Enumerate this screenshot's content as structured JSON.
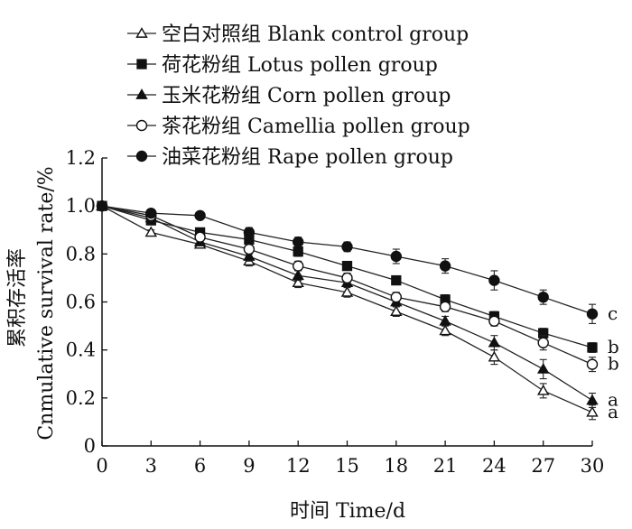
{
  "chart_data": {
    "type": "line",
    "xlabel": "时间  Time/d",
    "ylabel_cn": "累积存活率",
    "ylabel_en": "Cnmulative survival rate/%",
    "xlim": [
      0,
      30
    ],
    "ylim": [
      0,
      1.2
    ],
    "x_ticks": [
      0,
      3,
      6,
      9,
      12,
      15,
      18,
      21,
      24,
      27,
      30
    ],
    "y_ticks": [
      0,
      0.2,
      0.4,
      0.6,
      0.8,
      1.0,
      1.2
    ],
    "y_tick_labels": [
      "0",
      "0.2",
      "0.4",
      "0.6",
      "0.8",
      "1.0",
      "1.2"
    ],
    "grid": false,
    "legend_position": "top-left",
    "x": [
      0,
      3,
      6,
      9,
      12,
      15,
      18,
      21,
      24,
      27,
      30
    ],
    "series": [
      {
        "name": "空白对照组 Blank control group",
        "marker": "triangle-open",
        "values": [
          1.0,
          0.89,
          0.84,
          0.77,
          0.68,
          0.64,
          0.56,
          0.48,
          0.37,
          0.23,
          0.14
        ],
        "errors": [
          0.0,
          0.01,
          0.01,
          0.02,
          0.02,
          0.02,
          0.02,
          0.02,
          0.03,
          0.03,
          0.03
        ]
      },
      {
        "name": "荷花粉组 Lotus pollen group",
        "marker": "square-filled",
        "values": [
          1.0,
          0.94,
          0.89,
          0.86,
          0.81,
          0.75,
          0.69,
          0.61,
          0.54,
          0.47,
          0.41
        ],
        "errors": [
          0.0,
          0.01,
          0.01,
          0.01,
          0.02,
          0.01,
          0.01,
          0.02,
          0.02,
          0.02,
          0.02
        ]
      },
      {
        "name": "玉米花粉组 Corn pollen group",
        "marker": "triangle-filled",
        "values": [
          1.0,
          0.95,
          0.85,
          0.79,
          0.71,
          0.68,
          0.6,
          0.52,
          0.43,
          0.32,
          0.19
        ],
        "errors": [
          0.0,
          0.01,
          0.01,
          0.02,
          0.02,
          0.02,
          0.02,
          0.02,
          0.03,
          0.04,
          0.03
        ]
      },
      {
        "name": "茶花粉组 Camellia pollen group",
        "marker": "circle-open",
        "values": [
          1.0,
          0.96,
          0.87,
          0.82,
          0.75,
          0.7,
          0.62,
          0.58,
          0.52,
          0.43,
          0.34
        ],
        "errors": [
          0.0,
          0.01,
          0.01,
          0.02,
          0.02,
          0.02,
          0.02,
          0.02,
          0.02,
          0.03,
          0.03
        ]
      },
      {
        "name": "油菜花粉组 Rape pollen group",
        "marker": "circle-filled",
        "values": [
          1.0,
          0.97,
          0.96,
          0.89,
          0.85,
          0.83,
          0.79,
          0.75,
          0.69,
          0.62,
          0.55
        ],
        "errors": [
          0.0,
          0.01,
          0.01,
          0.02,
          0.02,
          0.02,
          0.03,
          0.03,
          0.04,
          0.03,
          0.04
        ]
      }
    ],
    "annotations": [
      {
        "text": "c",
        "x": 30,
        "y": 0.55
      },
      {
        "text": "b",
        "x": 30,
        "y": 0.41
      },
      {
        "text": "b",
        "x": 30,
        "y": 0.34
      },
      {
        "text": "a",
        "x": 30,
        "y": 0.19
      },
      {
        "text": "a",
        "x": 30,
        "y": 0.14
      }
    ]
  }
}
